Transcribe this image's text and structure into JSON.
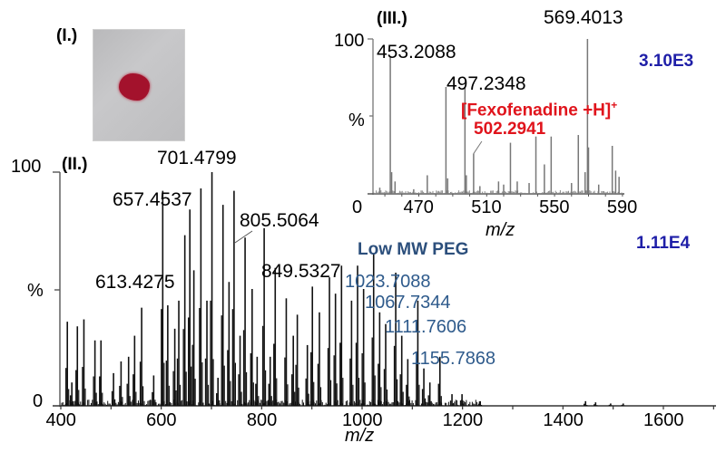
{
  "panels": {
    "photo_label": "(I.)",
    "main_label": "(II.)",
    "inset_label": "(III.)"
  },
  "colors": {
    "annotation_red": "#e0141c",
    "intensity_blue": "#1f1fa8",
    "peg_blue": "#2f5b8c",
    "stain_red": "#a3122c"
  },
  "main": {
    "intensity": "1.11E4",
    "peg_label": "Low MW PEG",
    "y_top": "100",
    "y_mid": "%",
    "y_zero": "0",
    "xlabel": "m/z",
    "xticks": [
      "400",
      "600",
      "800",
      "1000",
      "1200",
      "1400",
      "1600"
    ],
    "annotations": [
      "613.4275",
      "657.4537",
      "701.4799",
      "805.5064",
      "849.5327"
    ],
    "peg_annotations": [
      "1023.7088",
      "1067.7344",
      "1111.7606",
      "1155.7868"
    ]
  },
  "inset": {
    "intensity": "3.10E3",
    "y_top": "100",
    "y_mid": "%",
    "y_zero": "0",
    "xlabel": "m/z",
    "xticks": [
      "470",
      "510",
      "550",
      "590"
    ],
    "annotations": [
      "453.2088",
      "497.2348",
      "569.4013"
    ],
    "fexo_label": "[Fexofenadine +H]",
    "fexo_sup": "+",
    "fexo_mz": "502.2941"
  },
  "chart_data": [
    {
      "type": "bar",
      "title": "(II.) Full mass spectrum",
      "xlabel": "m/z",
      "ylabel": "%",
      "xlim": [
        400,
        1705
      ],
      "ylim": [
        0,
        100
      ],
      "annotation_text": [
        "1.11E4",
        "Low MW PEG"
      ],
      "x": [
        413,
        422,
        433,
        446,
        468,
        480,
        505,
        520,
        535,
        547,
        561,
        585,
        603,
        613,
        627,
        635,
        647,
        657,
        665,
        679,
        691,
        701,
        713,
        723,
        735,
        745,
        757,
        767,
        781,
        791,
        805,
        817,
        827,
        849,
        863,
        871,
        891,
        901,
        915,
        935,
        947,
        959,
        979,
        991,
        1003,
        1023,
        1035,
        1047,
        1067,
        1079,
        1091,
        1111,
        1123,
        1135,
        1155,
        1179,
        1199,
        1235,
        1445,
        1465,
        1495,
        1520
      ],
      "values": [
        36,
        10,
        34,
        37,
        28,
        28,
        14,
        19,
        21,
        30,
        42,
        13,
        92,
        43,
        33,
        45,
        73,
        84,
        58,
        93,
        45,
        100,
        12,
        86,
        53,
        92,
        30,
        72,
        50,
        21,
        76,
        21,
        59,
        46,
        30,
        39,
        26,
        51,
        40,
        55,
        48,
        60,
        45,
        60,
        50,
        65,
        40,
        35,
        57,
        30,
        20,
        45,
        16,
        10,
        21,
        5,
        5,
        2,
        2,
        1.5,
        1,
        1
      ],
      "labels": {
        "613.4275": 43,
        "657.4537": 84,
        "701.4799": 100,
        "805.5064": 76,
        "849.5327": 46,
        "1023.7088": 65,
        "1067.7344": 57,
        "1111.7606": 45,
        "1155.7868": 21
      }
    },
    {
      "type": "bar",
      "title": "(III.) Zoomed region",
      "xlabel": "m/z",
      "ylabel": "%",
      "xlim": [
        443,
        593
      ],
      "ylim": [
        0,
        100
      ],
      "annotation_text": [
        "3.10E3",
        "[Fexofenadine +H]+ 502.2941"
      ],
      "x": [
        447,
        456,
        453.2,
        454,
        467,
        475,
        486,
        487,
        497.2,
        498,
        502.3,
        506,
        517,
        520,
        524,
        528,
        535,
        539,
        544,
        548,
        560,
        564,
        568,
        569.4,
        570,
        576,
        584,
        586,
        588
      ],
      "values": [
        4,
        8,
        88,
        14,
        3,
        12,
        69,
        10,
        69,
        12,
        26,
        5,
        8,
        6,
        33,
        8,
        7,
        37,
        19,
        37,
        7,
        38,
        14,
        100,
        30,
        6,
        31,
        15,
        11
      ],
      "labels": {
        "453.2088": 88,
        "497.2348": 69,
        "502.2941": 26,
        "569.4013": 100
      }
    }
  ]
}
